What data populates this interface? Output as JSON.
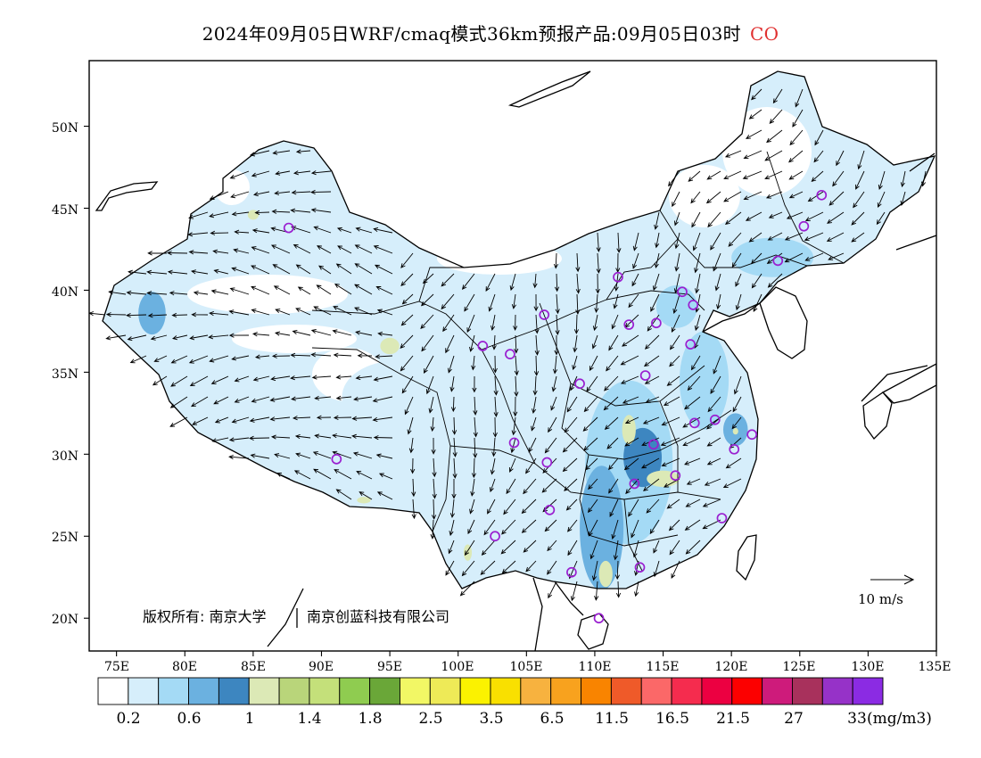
{
  "title": {
    "main": "2024年09月05日WRF/cmaq模式36km预报产品:09月05日03时",
    "species": "CO"
  },
  "axes": {
    "lat_labels": [
      "50N",
      "45N",
      "40N",
      "35N",
      "30N",
      "25N",
      "20N"
    ],
    "lon_labels": [
      "75E",
      "80E",
      "85E",
      "90E",
      "95E",
      "100E",
      "105E",
      "110E",
      "115E",
      "120E",
      "125E",
      "130E",
      "135E"
    ],
    "lat_values": [
      50,
      45,
      40,
      35,
      30,
      25,
      20
    ],
    "lon_values": [
      75,
      80,
      85,
      90,
      95,
      100,
      105,
      110,
      115,
      120,
      125,
      130,
      135
    ],
    "lon_range": [
      73,
      135
    ],
    "lat_range": [
      18,
      54
    ]
  },
  "credit": {
    "left": "版权所有: 南京大学",
    "right": "南京创蓝科技有限公司"
  },
  "wind_reference": {
    "label": "10 m/s"
  },
  "colorbar": {
    "unit": "(mg/m3)",
    "labels": [
      "0.2",
      "0.6",
      "1",
      "1.4",
      "1.8",
      "2.5",
      "3.5",
      "6.5",
      "11.5",
      "16.5",
      "21.5",
      "27",
      "33"
    ],
    "colors": [
      "#ffffff",
      "#d6eefb",
      "#a4daf5",
      "#6bb1e0",
      "#3d86c0",
      "#dce9b6",
      "#b9d57a",
      "#c4e07a",
      "#8fcc50",
      "#6aa738",
      "#f2f765",
      "#eeea57",
      "#fbf200",
      "#f9e000",
      "#f7b23f",
      "#f8a21e",
      "#f98400",
      "#ef5a29",
      "#fb6868",
      "#f52c4e",
      "#ec0041",
      "#fc0000",
      "#ce1b7b",
      "#a8315c",
      "#9632c8",
      "#8b2be3"
    ]
  },
  "monitoring_sites": [
    {
      "lon": 87.6,
      "lat": 43.8
    },
    {
      "lon": 91.1,
      "lat": 29.7
    },
    {
      "lon": 101.8,
      "lat": 36.6
    },
    {
      "lon": 103.8,
      "lat": 36.1
    },
    {
      "lon": 106.3,
      "lat": 38.5
    },
    {
      "lon": 111.7,
      "lat": 40.8
    },
    {
      "lon": 112.5,
      "lat": 37.9
    },
    {
      "lon": 114.5,
      "lat": 38.0
    },
    {
      "lon": 116.4,
      "lat": 39.9
    },
    {
      "lon": 117.2,
      "lat": 39.1
    },
    {
      "lon": 117.0,
      "lat": 36.7
    },
    {
      "lon": 113.7,
      "lat": 34.8
    },
    {
      "lon": 108.9,
      "lat": 34.3
    },
    {
      "lon": 104.1,
      "lat": 30.7
    },
    {
      "lon": 106.5,
      "lat": 29.5
    },
    {
      "lon": 114.3,
      "lat": 30.6
    },
    {
      "lon": 112.9,
      "lat": 28.2
    },
    {
      "lon": 115.9,
      "lat": 28.7
    },
    {
      "lon": 117.3,
      "lat": 31.9
    },
    {
      "lon": 118.8,
      "lat": 32.1
    },
    {
      "lon": 121.5,
      "lat": 31.2
    },
    {
      "lon": 120.2,
      "lat": 30.3
    },
    {
      "lon": 119.3,
      "lat": 26.1
    },
    {
      "lon": 113.3,
      "lat": 23.1
    },
    {
      "lon": 108.3,
      "lat": 22.8
    },
    {
      "lon": 110.3,
      "lat": 20.0
    },
    {
      "lon": 102.7,
      "lat": 25.0
    },
    {
      "lon": 106.7,
      "lat": 26.6
    },
    {
      "lon": 123.4,
      "lat": 41.8
    },
    {
      "lon": 125.3,
      "lat": 43.9
    },
    {
      "lon": 126.6,
      "lat": 45.8
    }
  ],
  "concentration_patches": [
    {
      "lon": 112.5,
      "lat": 29.5,
      "rx": 3.2,
      "ry": 5.0,
      "level": 2
    },
    {
      "lon": 110.5,
      "lat": 25.5,
      "rx": 1.6,
      "ry": 3.8,
      "level": 3
    },
    {
      "lon": 113.5,
      "lat": 29.8,
      "rx": 1.4,
      "ry": 1.8,
      "level": 4
    },
    {
      "lon": 112.5,
      "lat": 31.5,
      "rx": 0.5,
      "ry": 0.9,
      "level": 5
    },
    {
      "lon": 115.0,
      "lat": 28.5,
      "rx": 1.2,
      "ry": 0.5,
      "level": 5
    },
    {
      "lon": 110.8,
      "lat": 22.7,
      "rx": 0.5,
      "ry": 0.8,
      "level": 5
    },
    {
      "lon": 118.0,
      "lat": 34.5,
      "rx": 1.8,
      "ry": 3.0,
      "level": 2
    },
    {
      "lon": 120.3,
      "lat": 31.5,
      "rx": 0.9,
      "ry": 1.0,
      "level": 3
    },
    {
      "lon": 120.3,
      "lat": 31.4,
      "rx": 0.2,
      "ry": 0.2,
      "level": 5
    },
    {
      "lon": 95.0,
      "lat": 36.6,
      "rx": 0.7,
      "ry": 0.5,
      "level": 5
    },
    {
      "lon": 89.2,
      "lat": 43.1,
      "rx": 1.1,
      "ry": 0.5,
      "level": 5
    },
    {
      "lon": 85.0,
      "lat": 44.6,
      "rx": 0.4,
      "ry": 0.3,
      "level": 5
    },
    {
      "lon": 93.1,
      "lat": 27.2,
      "rx": 0.5,
      "ry": 0.2,
      "level": 5
    },
    {
      "lon": 100.7,
      "lat": 24.0,
      "rx": 0.3,
      "ry": 0.5,
      "level": 5
    },
    {
      "lon": 77.6,
      "lat": 38.6,
      "rx": 1.0,
      "ry": 1.3,
      "level": 3
    },
    {
      "lon": 95.5,
      "lat": 33.5,
      "rx": 4.0,
      "ry": 2.2,
      "level": 1
    },
    {
      "lon": 104.0,
      "lat": 33.0,
      "rx": 4.0,
      "ry": 4.5,
      "level": 1
    },
    {
      "lon": 123.0,
      "lat": 42.0,
      "rx": 3.0,
      "ry": 1.2,
      "level": 2
    },
    {
      "lon": 116.0,
      "lat": 39.0,
      "rx": 1.5,
      "ry": 1.3,
      "level": 2
    },
    {
      "lon": 105.0,
      "lat": 27.5,
      "rx": 3.0,
      "ry": 3.0,
      "level": 1
    },
    {
      "lon": 88.0,
      "lat": 43.5,
      "rx": 3.0,
      "ry": 1.6,
      "level": 1
    }
  ]
}
